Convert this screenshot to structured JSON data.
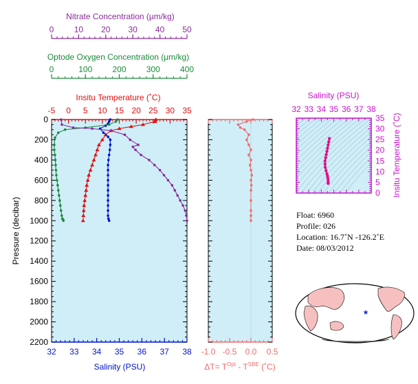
{
  "colors": {
    "nitrate": "#8a2a9a",
    "oxygen": "#1a8a3a",
    "temperature": "#e01010",
    "salinity": "#0010d0",
    "delta": "#f06a6a",
    "ts_axis": "#cc10cc",
    "panel_bg": "#cfeef8",
    "axis": "#000000"
  },
  "axes": {
    "nitrate_title": "Nitrate Concentration (μm/kg)",
    "oxygen_title": "Optode Oxygen Concentration (μm/kg)",
    "temp_title": "Insitu Temperature (˚C)",
    "salinity_title": "Salinity (PSU)",
    "pressure_title": "Pressure (decibar)",
    "delta_title_prefix": "ΔT= T",
    "delta_sup1": "Opt",
    "delta_mid": " - T",
    "delta_sup2": "SBE",
    "delta_suffix": " (˚C)",
    "ts_salinity_title": "Salinity (PSU)",
    "ts_temp_title": "Insitu Temperature (˚C)"
  },
  "info": {
    "float": "Float:  6960",
    "profile": "Profile:  026",
    "location": "Location:  16.7˚N  -126.2˚E",
    "date": "Date:  08/03/2012"
  },
  "chart_data": [
    {
      "type": "line",
      "panel": "main",
      "y_axis": {
        "label": "Pressure (decibar)",
        "range": [
          2200,
          0
        ],
        "ticks": [
          0,
          200,
          400,
          600,
          800,
          1000,
          1200,
          1400,
          1600,
          1800,
          2000,
          2200
        ]
      },
      "x_axes": [
        {
          "name": "Nitrate Concentration (μm/kg)",
          "range": [
            0,
            50
          ],
          "ticks": [
            0,
            10,
            20,
            30,
            40,
            50
          ],
          "position": "top"
        },
        {
          "name": "Optode Oxygen Concentration (μm/kg)",
          "range": [
            0,
            400
          ],
          "ticks": [
            0,
            100,
            200,
            300,
            400
          ],
          "position": "top"
        },
        {
          "name": "Insitu Temperature (˚C)",
          "range": [
            -5,
            35
          ],
          "ticks": [
            -5,
            0,
            5,
            10,
            15,
            20,
            25,
            30,
            35
          ],
          "position": "top"
        },
        {
          "name": "Salinity (PSU)",
          "range": [
            32,
            38
          ],
          "ticks": [
            32,
            33,
            34,
            35,
            36,
            37,
            38
          ],
          "position": "bottom"
        }
      ],
      "series": [
        {
          "axis": "Insitu Temperature (˚C)",
          "marker": "triangle",
          "x": [
            25.8,
            25.6,
            22.0,
            18.5,
            15.0,
            12.5,
            11.0,
            10.0,
            9.0,
            8.5,
            8.0,
            7.5,
            7.0,
            6.5,
            6.0,
            5.7,
            5.4,
            5.2,
            5.0,
            4.8,
            4.6,
            4.5,
            4.4,
            4.3
          ],
          "y": [
            0,
            20,
            50,
            70,
            90,
            110,
            150,
            200,
            250,
            300,
            350,
            400,
            450,
            500,
            550,
            600,
            650,
            700,
            750,
            800,
            850,
            900,
            950,
            1000
          ]
        },
        {
          "axis": "Salinity (PSU)",
          "marker": "circle",
          "x": [
            34.6,
            34.55,
            34.5,
            34.4,
            34.15,
            34.3,
            34.5,
            34.6,
            34.6,
            34.58,
            34.55,
            34.52,
            34.5,
            34.5,
            34.5,
            34.5,
            34.5,
            34.5,
            34.5,
            34.5,
            34.5,
            34.5,
            34.5,
            34.52,
            34.55
          ],
          "y": [
            0,
            20,
            40,
            60,
            90,
            130,
            170,
            200,
            250,
            300,
            350,
            400,
            450,
            500,
            550,
            600,
            650,
            700,
            750,
            800,
            850,
            900,
            950,
            980,
            1000
          ]
        },
        {
          "axis": "Optode Oxygen Concentration (μm/kg)",
          "marker": "circle",
          "x": [
            195,
            190,
            170,
            100,
            40,
            20,
            10,
            8,
            8,
            10,
            11,
            12,
            13,
            14,
            16,
            18,
            20,
            22,
            24,
            26,
            28,
            30,
            32,
            34,
            35
          ],
          "y": [
            0,
            20,
            50,
            80,
            100,
            130,
            180,
            250,
            300,
            350,
            400,
            450,
            500,
            550,
            600,
            650,
            700,
            750,
            800,
            850,
            900,
            950,
            980,
            990,
            1000
          ]
        },
        {
          "axis": "Nitrate Concentration (μm/kg)",
          "marker": "circle",
          "x": [
            3.5,
            3.8,
            8.0,
            15.0,
            22.0,
            27.0,
            29.0,
            32.0,
            30.0,
            31.0,
            33.0,
            36.0,
            38.0,
            40.0,
            41.5,
            43.0,
            44.5,
            45.5,
            46.5,
            47.5,
            48.5,
            49.3,
            49.8,
            50.0
          ],
          "y": [
            0,
            50,
            80,
            90,
            110,
            150,
            200,
            250,
            270,
            300,
            350,
            400,
            450,
            500,
            550,
            600,
            650,
            700,
            750,
            800,
            850,
            900,
            950,
            1000
          ]
        }
      ]
    },
    {
      "type": "line",
      "panel": "delta",
      "x_axis": {
        "label": "ΔT= T^Opt - T^SBE (˚C)",
        "range": [
          -1.0,
          0.5
        ],
        "ticks": [
          -1.0,
          -0.5,
          0.0,
          0.5
        ],
        "tick_labels": [
          "-1.0",
          "-0.5",
          "0.0",
          "0.5"
        ]
      },
      "y_axis": {
        "range": [
          2200,
          0
        ]
      },
      "series": [
        {
          "marker": "circle",
          "x": [
            0.05,
            -0.1,
            -0.3,
            -0.25,
            -0.15,
            -0.05,
            -0.1,
            -0.05,
            0.0,
            -0.05,
            0.0,
            -0.02,
            0.0,
            0.02,
            0.0,
            0.01,
            0.0,
            0.0,
            0.0,
            0.0,
            0.0
          ],
          "y": [
            0,
            20,
            50,
            80,
            100,
            150,
            200,
            250,
            300,
            350,
            400,
            450,
            500,
            550,
            600,
            650,
            700,
            800,
            900,
            950,
            1000
          ]
        }
      ]
    },
    {
      "type": "scatter",
      "panel": "ts",
      "x_axis": {
        "label": "Salinity (PSU)",
        "range": [
          32,
          38
        ],
        "ticks": [
          32,
          33,
          34,
          35,
          36,
          37,
          38
        ],
        "position": "top"
      },
      "y_axis": {
        "label": "Insitu Temperature (˚C)",
        "range": [
          0,
          35
        ],
        "ticks": [
          0,
          5,
          10,
          15,
          20,
          25,
          30,
          35
        ],
        "position": "right"
      },
      "series": [
        {
          "marker": "circle",
          "x": [
            34.65,
            34.6,
            34.55,
            34.5,
            34.45,
            34.4,
            34.35,
            34.3,
            34.3,
            34.32,
            34.38,
            34.45,
            34.5,
            34.52,
            34.55,
            34.55,
            34.55
          ],
          "y": [
            25.5,
            24.0,
            22.5,
            21.0,
            19.5,
            18.0,
            16.5,
            15.0,
            13.5,
            12.0,
            10.5,
            9.0,
            8.0,
            7.0,
            6.0,
            5.0,
            4.5
          ]
        }
      ]
    }
  ]
}
